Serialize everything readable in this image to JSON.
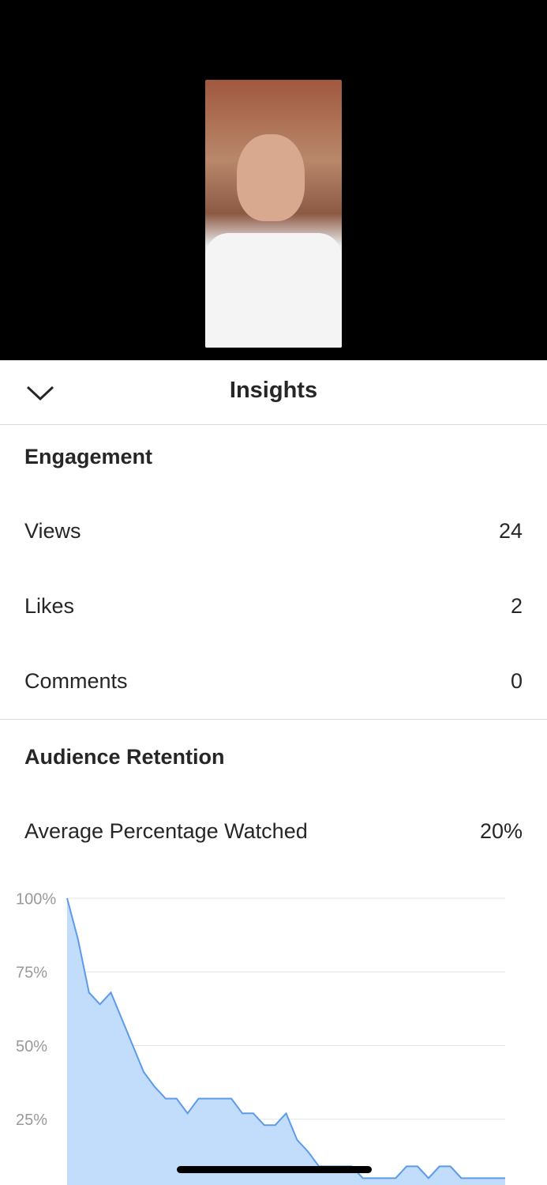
{
  "header": {
    "title": "Insights"
  },
  "engagement": {
    "title": "Engagement",
    "rows": [
      {
        "label": "Views",
        "value": 24
      },
      {
        "label": "Likes",
        "value": 2
      },
      {
        "label": "Comments",
        "value": 0
      }
    ]
  },
  "retention": {
    "title": "Audience Retention",
    "rows": [
      {
        "label": "Average Percentage Watched",
        "value": "20%"
      }
    ]
  },
  "chart_data": {
    "type": "area",
    "values": [
      100,
      86,
      68,
      64,
      68,
      59,
      50,
      41,
      36,
      32,
      32,
      27,
      32,
      32,
      32,
      32,
      27,
      27,
      23,
      23,
      27,
      18,
      14,
      9,
      9,
      9,
      9,
      5,
      5,
      5,
      5,
      9,
      9,
      5,
      9,
      9,
      5,
      5,
      5,
      5,
      5
    ],
    "color": "#5b9bea",
    "fill": "#c2dcfb",
    "ylim": [
      0,
      100
    ],
    "yticks": [
      {
        "value": 25,
        "label": "25%"
      },
      {
        "value": 50,
        "label": "50%"
      },
      {
        "value": 75,
        "label": "75%"
      },
      {
        "value": 100,
        "label": "100%"
      }
    ],
    "grid": true
  }
}
